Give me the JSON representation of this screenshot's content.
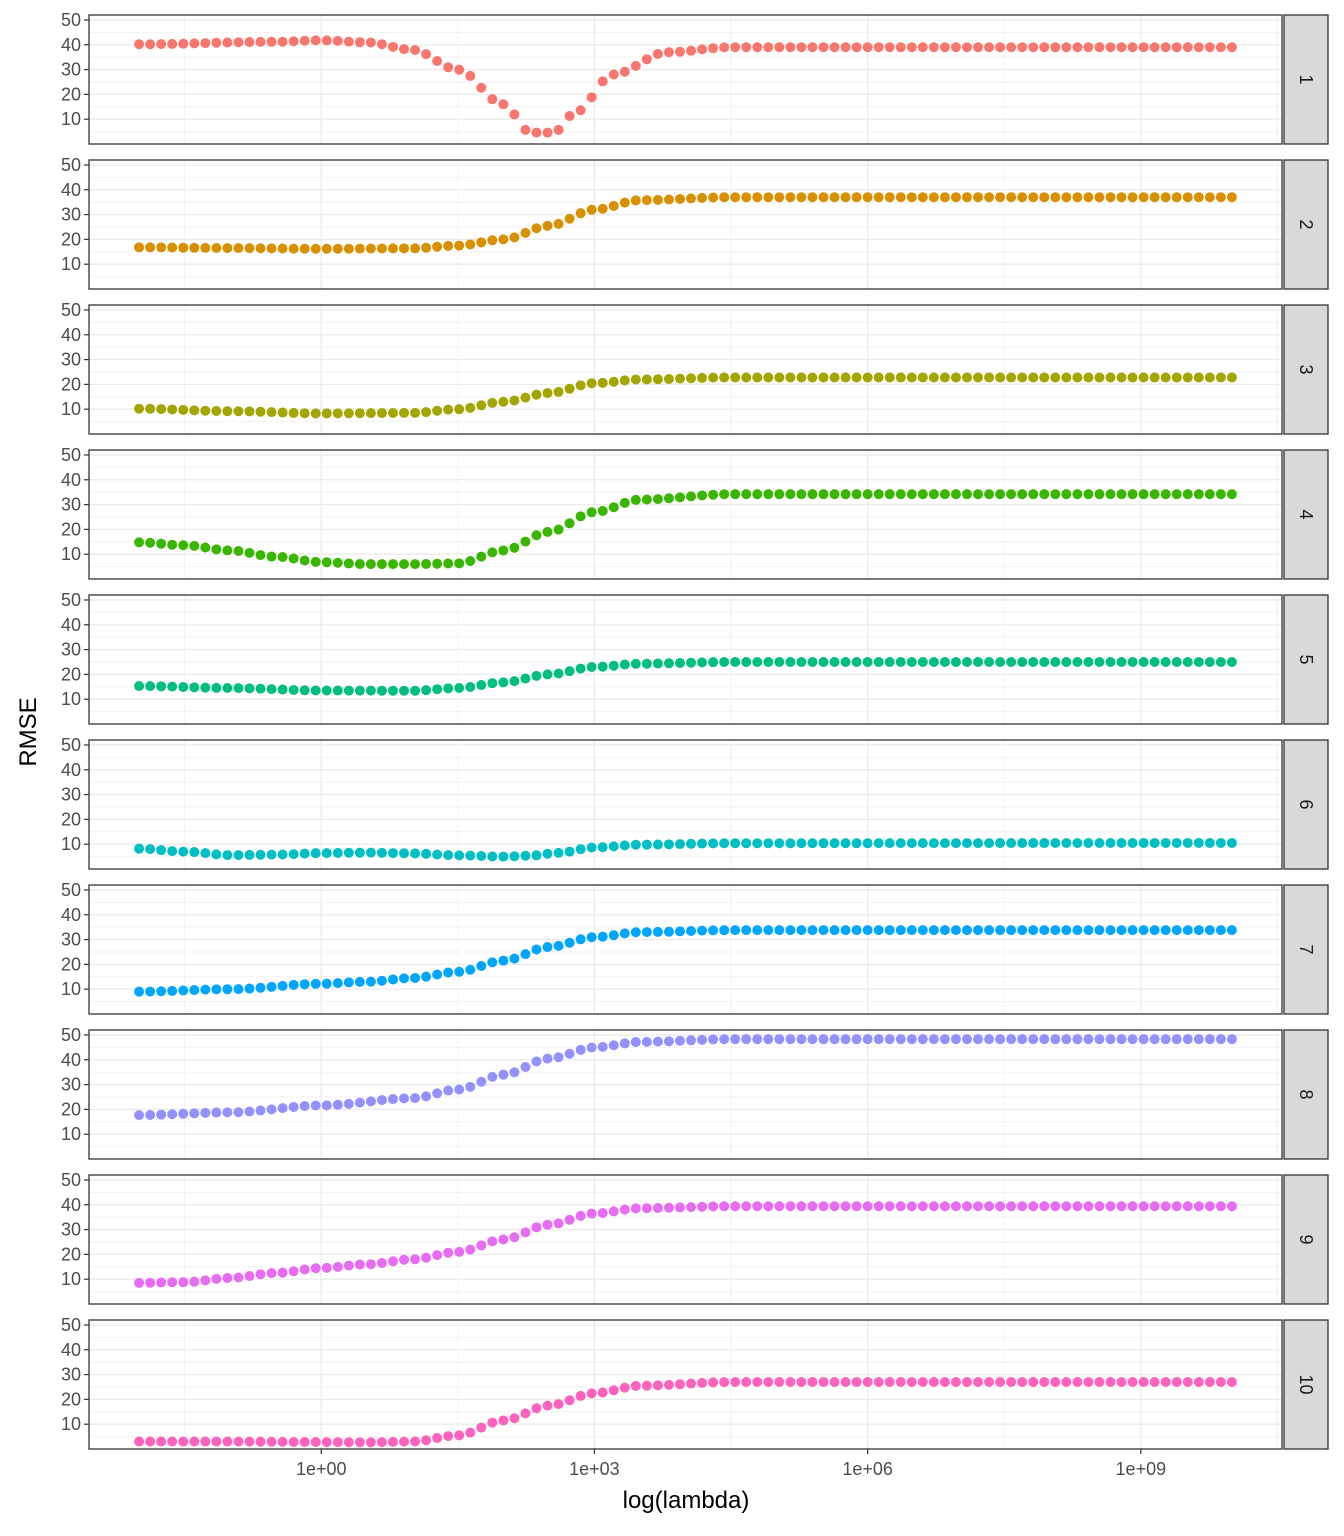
{
  "chart_data": {
    "type": "scatter",
    "layout": "faceted-vertical",
    "xlabel": "log(lambda)",
    "ylabel": "RMSE",
    "x_scale": "log10",
    "x_tick_values": [
      1,
      1000,
      1000000,
      1000000000
    ],
    "x_tick_labels": [
      "1e+00",
      "1e+03",
      "1e+06",
      "1e+09"
    ],
    "x_log10_range": [
      -2.55,
      10.55
    ],
    "x_points": {
      "count": 100,
      "log10_from": -2.0,
      "log10_to": 10.0
    },
    "ylim": [
      0,
      52
    ],
    "y_ticks": [
      10,
      20,
      30,
      40,
      50
    ],
    "grid": true,
    "legend": "none",
    "facet_strip_colors": {
      "fill": "#d9d9d9",
      "border": "#333333"
    },
    "facets": [
      {
        "label": "1",
        "color": "#F8766D",
        "knots": [
          [
            -2,
            40.2
          ],
          [
            -0.5,
            41.2
          ],
          [
            0,
            41.8
          ],
          [
            0.5,
            41
          ],
          [
            1,
            38
          ],
          [
            1.5,
            30
          ],
          [
            2,
            16
          ],
          [
            2.3,
            4.6
          ],
          [
            2.55,
            4.6
          ],
          [
            2.8,
            13
          ],
          [
            3.2,
            28
          ],
          [
            3.8,
            37
          ],
          [
            4.5,
            39
          ],
          [
            10,
            39
          ]
        ]
      },
      {
        "label": "2",
        "color": "#D89000",
        "knots": [
          [
            -2,
            16.8
          ],
          [
            -1,
            16.5
          ],
          [
            0,
            16.2
          ],
          [
            1,
            16.4
          ],
          [
            1.5,
            17.5
          ],
          [
            2,
            20
          ],
          [
            2.5,
            25.5
          ],
          [
            3,
            32
          ],
          [
            3.5,
            35.8
          ],
          [
            4.5,
            37
          ],
          [
            10,
            37
          ]
        ]
      },
      {
        "label": "3",
        "color": "#A3A500",
        "knots": [
          [
            -2,
            10.2
          ],
          [
            -1,
            9.2
          ],
          [
            0,
            8.3
          ],
          [
            1,
            8.5
          ],
          [
            1.5,
            10
          ],
          [
            2,
            13
          ],
          [
            2.5,
            16.5
          ],
          [
            3,
            20.5
          ],
          [
            3.5,
            22
          ],
          [
            4.5,
            22.8
          ],
          [
            10,
            22.8
          ]
        ]
      },
      {
        "label": "4",
        "color": "#39B600",
        "knots": [
          [
            -2,
            14.8
          ],
          [
            -1.5,
            13.6
          ],
          [
            -1,
            11.5
          ],
          [
            -0.5,
            9
          ],
          [
            0,
            6.8
          ],
          [
            0.5,
            6
          ],
          [
            1,
            6
          ],
          [
            1.5,
            6.3
          ],
          [
            2,
            11.5
          ],
          [
            2.5,
            19
          ],
          [
            3,
            27
          ],
          [
            3.5,
            32
          ],
          [
            4.5,
            34.2
          ],
          [
            10,
            34.2
          ]
        ]
      },
      {
        "label": "5",
        "color": "#00BF7D",
        "knots": [
          [
            -2,
            15.3
          ],
          [
            -1,
            14.5
          ],
          [
            0,
            13.5
          ],
          [
            1,
            13.4
          ],
          [
            1.5,
            14.5
          ],
          [
            2,
            16.8
          ],
          [
            2.5,
            20
          ],
          [
            3,
            23
          ],
          [
            3.5,
            24.3
          ],
          [
            4.5,
            25
          ],
          [
            10,
            25
          ]
        ]
      },
      {
        "label": "6",
        "color": "#00BFC4",
        "knots": [
          [
            -2,
            8.2
          ],
          [
            -1.5,
            7
          ],
          [
            -1,
            5.6
          ],
          [
            -0.5,
            5.8
          ],
          [
            0,
            6.4
          ],
          [
            0.5,
            6.6
          ],
          [
            1,
            6.3
          ],
          [
            1.5,
            5.5
          ],
          [
            2,
            5
          ],
          [
            2.3,
            5.4
          ],
          [
            2.6,
            6.5
          ],
          [
            3,
            8.7
          ],
          [
            3.5,
            9.8
          ],
          [
            4.5,
            10.4
          ],
          [
            10,
            10.5
          ]
        ]
      },
      {
        "label": "7",
        "color": "#00A5FF",
        "knots": [
          [
            -2,
            9
          ],
          [
            -1,
            10
          ],
          [
            0,
            12.2
          ],
          [
            0.5,
            13
          ],
          [
            1,
            14.5
          ],
          [
            1.5,
            17
          ],
          [
            2,
            21.5
          ],
          [
            2.5,
            27
          ],
          [
            3,
            31
          ],
          [
            3.5,
            33
          ],
          [
            4.5,
            33.8
          ],
          [
            10,
            33.8
          ]
        ]
      },
      {
        "label": "8",
        "color": "#9590FF",
        "knots": [
          [
            -2,
            17.7
          ],
          [
            -1,
            18.8
          ],
          [
            0,
            21.6
          ],
          [
            1,
            24.5
          ],
          [
            1.5,
            28
          ],
          [
            2,
            34
          ],
          [
            2.5,
            40.5
          ],
          [
            3,
            45
          ],
          [
            3.5,
            47.2
          ],
          [
            4.5,
            48.3
          ],
          [
            10,
            48.3
          ]
        ]
      },
      {
        "label": "9",
        "color": "#E76BF3",
        "knots": [
          [
            -2,
            8.5
          ],
          [
            -1.5,
            8.8
          ],
          [
            -1,
            10.5
          ],
          [
            -0.5,
            12.5
          ],
          [
            0,
            14.5
          ],
          [
            0.5,
            16
          ],
          [
            1,
            18
          ],
          [
            1.5,
            21
          ],
          [
            2,
            26
          ],
          [
            2.5,
            32
          ],
          [
            3,
            36.5
          ],
          [
            3.5,
            38.6
          ],
          [
            4.5,
            39.4
          ],
          [
            10,
            39.4
          ]
        ]
      },
      {
        "label": "10",
        "color": "#FF62BC",
        "knots": [
          [
            -2,
            3
          ],
          [
            -1,
            3
          ],
          [
            0,
            2.8
          ],
          [
            0.5,
            2.7
          ],
          [
            1,
            3
          ],
          [
            1.5,
            5.5
          ],
          [
            2,
            11.5
          ],
          [
            2.5,
            17.5
          ],
          [
            3,
            22.5
          ],
          [
            3.5,
            25.5
          ],
          [
            4.5,
            27
          ],
          [
            10,
            27
          ]
        ]
      }
    ]
  }
}
